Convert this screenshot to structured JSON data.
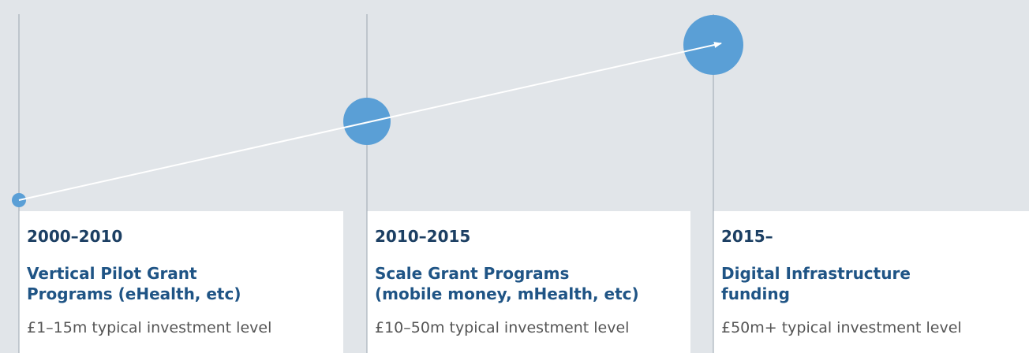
{
  "stages": [
    {
      "period": "2000–2010",
      "title": [
        "Vertical Pilot Grant",
        "Programs (eHealth, etc)"
      ],
      "investment": "£1–15m typical investment level"
    },
    {
      "period": "2010–2015",
      "title": [
        "Scale Grant Programs",
        "(mobile money, mHealth, etc)"
      ],
      "investment": "£10–50m typical investment level"
    },
    {
      "period": "2015–",
      "title": [
        "Digital Infrastructure",
        "funding"
      ],
      "investment": "£50m+ typical investment level"
    }
  ]
}
